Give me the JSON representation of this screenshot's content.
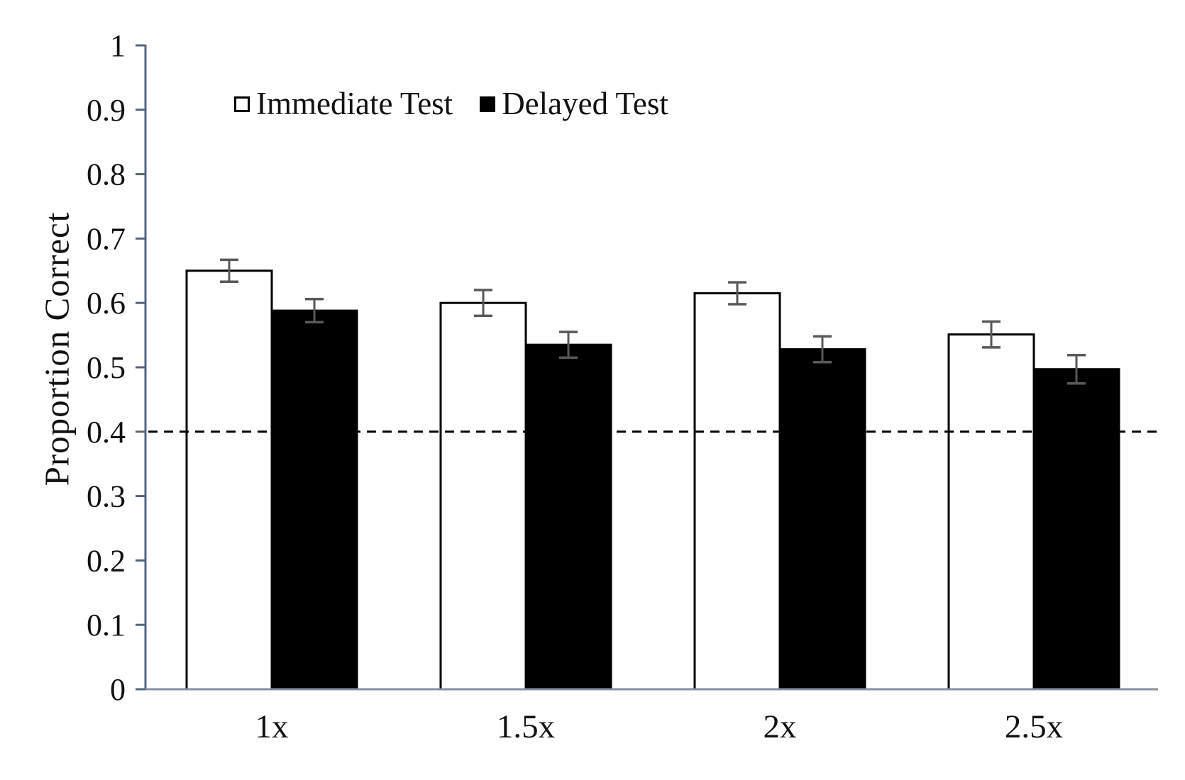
{
  "chart_data": {
    "type": "bar",
    "title": "",
    "xlabel": "",
    "ylabel": "Proportion Correct",
    "categories": [
      "1x",
      "1.5x",
      "2x",
      "2.5x"
    ],
    "series": [
      {
        "name": "Immediate Test",
        "values": [
          0.65,
          0.6,
          0.615,
          0.551
        ],
        "errors": [
          0.017,
          0.02,
          0.017,
          0.02
        ],
        "fill": "#ffffff",
        "stroke": "#000000"
      },
      {
        "name": "Delayed Test",
        "values": [
          0.588,
          0.535,
          0.528,
          0.497
        ],
        "errors": [
          0.018,
          0.02,
          0.02,
          0.022
        ],
        "fill": "#000000",
        "stroke": "#000000"
      }
    ],
    "ylim": [
      0,
      1
    ],
    "yticks": [
      0,
      0.1,
      0.2,
      0.3,
      0.4,
      0.5,
      0.6,
      0.7,
      0.8,
      0.9,
      1
    ],
    "ytick_labels": [
      "0",
      "0.1",
      "0.2",
      "0.3",
      "0.4",
      "0.5",
      "0.6",
      "0.7",
      "0.8",
      "0.9",
      "1"
    ],
    "reference_line": {
      "value": 0.4,
      "style": "dashed",
      "color": "#000000"
    },
    "grid": false,
    "legend_position": "top-left-inside",
    "colors": {
      "y_axis": "#56647a",
      "x_axis": "#84909b",
      "error_bar": "#595959",
      "text": "#111111"
    }
  }
}
